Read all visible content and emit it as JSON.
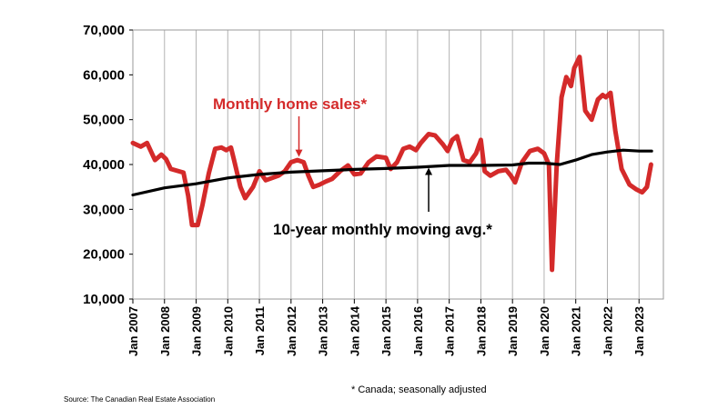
{
  "chart_data": {
    "type": "line",
    "title": "",
    "xlabel": "",
    "ylabel": "",
    "ylim": [
      10000,
      70000
    ],
    "y_ticks": [
      10000,
      20000,
      30000,
      40000,
      50000,
      60000,
      70000
    ],
    "y_tick_labels": [
      "10,000",
      "20,000",
      "30,000",
      "40,000",
      "50,000",
      "60,000",
      "70,000"
    ],
    "x_tick_labels": [
      "Jan 2007",
      "Jan 2008",
      "Jan 2009",
      "Jan 2010",
      "Jan 2011",
      "Jan 2012",
      "Jan 2013",
      "Jan 2014",
      "Jan 2015",
      "Jan 2016",
      "Jan 2017",
      "Jan 2018",
      "Jan 2019",
      "Jan 2020",
      "Jan 2021",
      "Jan 2022",
      "Jan 2023"
    ],
    "grid": "vertical lines at each January",
    "colors": {
      "monthly": "#d42a2a",
      "average": "#000000"
    },
    "series": [
      {
        "name": "Monthly home sales*",
        "points": [
          [
            2007.0,
            44800
          ],
          [
            2007.25,
            44000
          ],
          [
            2007.45,
            44800
          ],
          [
            2007.7,
            41000
          ],
          [
            2007.9,
            42200
          ],
          [
            2008.05,
            41200
          ],
          [
            2008.2,
            39000
          ],
          [
            2008.6,
            38200
          ],
          [
            2008.75,
            33000
          ],
          [
            2008.87,
            26500
          ],
          [
            2009.05,
            26500
          ],
          [
            2009.2,
            31000
          ],
          [
            2009.4,
            38000
          ],
          [
            2009.6,
            43500
          ],
          [
            2009.8,
            43800
          ],
          [
            2009.95,
            43200
          ],
          [
            2010.1,
            43800
          ],
          [
            2010.2,
            41000
          ],
          [
            2010.4,
            35000
          ],
          [
            2010.55,
            32500
          ],
          [
            2010.8,
            35000
          ],
          [
            2011.0,
            38500
          ],
          [
            2011.2,
            36500
          ],
          [
            2011.4,
            37000
          ],
          [
            2011.6,
            37500
          ],
          [
            2011.8,
            38500
          ],
          [
            2012.0,
            40500
          ],
          [
            2012.2,
            41000
          ],
          [
            2012.4,
            40500
          ],
          [
            2012.55,
            37500
          ],
          [
            2012.7,
            35000
          ],
          [
            2012.9,
            35500
          ],
          [
            2013.1,
            36200
          ],
          [
            2013.3,
            36800
          ],
          [
            2013.55,
            38500
          ],
          [
            2013.8,
            39800
          ],
          [
            2014.0,
            37800
          ],
          [
            2014.2,
            38000
          ],
          [
            2014.45,
            40500
          ],
          [
            2014.7,
            41800
          ],
          [
            2015.0,
            41500
          ],
          [
            2015.15,
            39000
          ],
          [
            2015.35,
            40500
          ],
          [
            2015.55,
            43500
          ],
          [
            2015.75,
            44000
          ],
          [
            2015.95,
            43200
          ],
          [
            2016.1,
            44800
          ],
          [
            2016.35,
            46800
          ],
          [
            2016.55,
            46500
          ],
          [
            2016.8,
            44500
          ],
          [
            2016.95,
            43000
          ],
          [
            2017.1,
            45500
          ],
          [
            2017.25,
            46300
          ],
          [
            2017.45,
            41000
          ],
          [
            2017.65,
            40500
          ],
          [
            2017.85,
            42500
          ],
          [
            2018.0,
            45500
          ],
          [
            2018.12,
            38500
          ],
          [
            2018.3,
            37500
          ],
          [
            2018.55,
            38500
          ],
          [
            2018.8,
            38800
          ],
          [
            2018.95,
            37500
          ],
          [
            2019.08,
            36000
          ],
          [
            2019.3,
            40500
          ],
          [
            2019.55,
            43000
          ],
          [
            2019.8,
            43500
          ],
          [
            2020.0,
            42500
          ],
          [
            2020.15,
            40000
          ],
          [
            2020.25,
            16500
          ],
          [
            2020.4,
            40000
          ],
          [
            2020.55,
            55000
          ],
          [
            2020.7,
            59500
          ],
          [
            2020.85,
            57500
          ],
          [
            2020.95,
            61500
          ],
          [
            2021.12,
            64000
          ],
          [
            2021.3,
            52000
          ],
          [
            2021.5,
            50000
          ],
          [
            2021.7,
            54500
          ],
          [
            2021.85,
            55500
          ],
          [
            2021.95,
            55000
          ],
          [
            2022.1,
            56000
          ],
          [
            2022.25,
            47500
          ],
          [
            2022.45,
            39000
          ],
          [
            2022.7,
            35500
          ],
          [
            2022.9,
            34500
          ],
          [
            2023.1,
            33800
          ],
          [
            2023.25,
            35000
          ],
          [
            2023.38,
            40000
          ]
        ]
      },
      {
        "name": "10-year monthly moving avg.*",
        "points": [
          [
            2007.0,
            33200
          ],
          [
            2008.0,
            34800
          ],
          [
            2009.0,
            35700
          ],
          [
            2010.0,
            37000
          ],
          [
            2011.0,
            37800
          ],
          [
            2012.0,
            38300
          ],
          [
            2013.0,
            38600
          ],
          [
            2014.0,
            38900
          ],
          [
            2015.0,
            39100
          ],
          [
            2016.0,
            39400
          ],
          [
            2017.0,
            39800
          ],
          [
            2018.0,
            39800
          ],
          [
            2019.0,
            39900
          ],
          [
            2019.5,
            40300
          ],
          [
            2020.0,
            40300
          ],
          [
            2020.5,
            40000
          ],
          [
            2021.0,
            41000
          ],
          [
            2021.5,
            42200
          ],
          [
            2022.0,
            42800
          ],
          [
            2022.5,
            43200
          ],
          [
            2023.0,
            43000
          ],
          [
            2023.4,
            43000
          ]
        ]
      }
    ],
    "annotations": [
      {
        "text": "Monthly home sales*",
        "color": "#d42a2a",
        "arrow": "down",
        "points_to": [
          2012.25,
          41500
        ]
      },
      {
        "text": "10-year monthly moving avg.*",
        "color": "#000000",
        "arrow": "up",
        "points_to": [
          2016.35,
          39500
        ]
      }
    ],
    "footnote": "* Canada; seasonally adjusted",
    "source": "Source: The Canadian Real Estate Association"
  }
}
